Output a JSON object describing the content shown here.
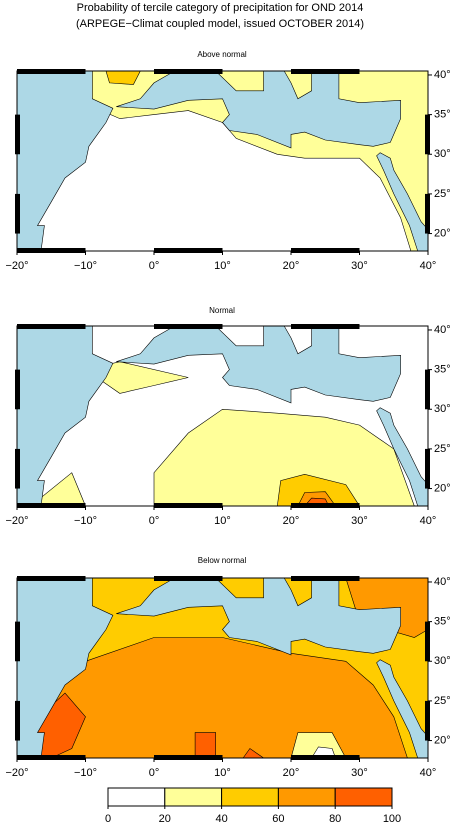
{
  "title_lines": [
    "Probability of tercile category of precipitation for OND 2014",
    "(ARPEGE−Climat coupled model, issued OCTOBER 2014)"
  ],
  "panels": [
    {
      "title": "Above normal"
    },
    {
      "title": "Normal"
    },
    {
      "title": "Below normal"
    }
  ],
  "lon_ticks": [
    {
      "value": -20,
      "label": "−20°"
    },
    {
      "value": -10,
      "label": "−10°"
    },
    {
      "value": 0,
      "label": "0°"
    },
    {
      "value": 10,
      "label": "10°"
    },
    {
      "value": 20,
      "label": "20°"
    },
    {
      "value": 30,
      "label": "30°"
    },
    {
      "value": 40,
      "label": "40°"
    }
  ],
  "lat_ticks": [
    {
      "value": 20,
      "label": "20°"
    },
    {
      "value": 25,
      "label": "25°"
    },
    {
      "value": 30,
      "label": "30°"
    },
    {
      "value": 35,
      "label": "35°"
    },
    {
      "value": 40,
      "label": "40°"
    }
  ],
  "xlim": [
    -20,
    40
  ],
  "ylim": [
    17.8,
    40.5
  ],
  "sea_color": "#add8e6",
  "colorbar": {
    "ticks": [
      0,
      20,
      40,
      60,
      80,
      100
    ],
    "colors": [
      "#ffffff",
      "#ffff99",
      "#ffcc00",
      "#ff9900",
      "#ff6000"
    ]
  }
}
